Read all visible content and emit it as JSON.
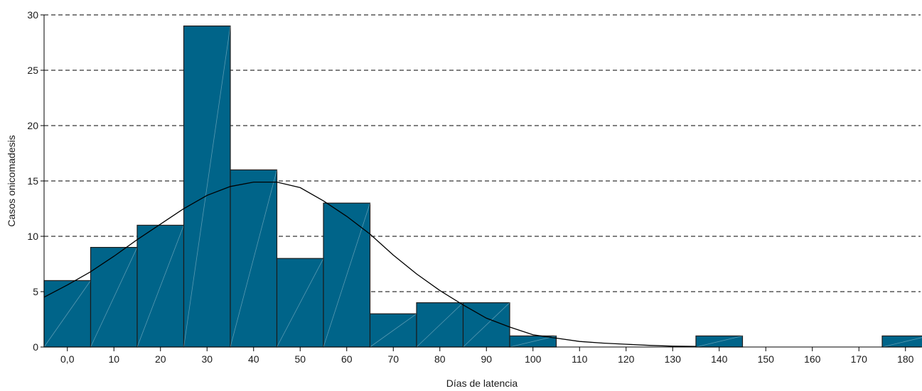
{
  "chart_data": {
    "type": "bar",
    "xlabel": "Días de latencia",
    "ylabel": "Casos onicomadesis",
    "ylim": [
      0,
      30
    ],
    "yticks": [
      0,
      5,
      10,
      15,
      20,
      25,
      30
    ],
    "grid": "horizontal-dashed",
    "x_tick_labels": [
      "0,0",
      "10",
      "20",
      "30",
      "40",
      "50",
      "60",
      "70",
      "80",
      "90",
      "100",
      "110",
      "120",
      "130",
      "140",
      "150",
      "160",
      "170",
      "180"
    ],
    "bin_width": 10,
    "bins": [
      {
        "center": 0,
        "value": 6
      },
      {
        "center": 10,
        "value": 9
      },
      {
        "center": 20,
        "value": 11
      },
      {
        "center": 30,
        "value": 29
      },
      {
        "center": 40,
        "value": 16
      },
      {
        "center": 50,
        "value": 8
      },
      {
        "center": 60,
        "value": 13
      },
      {
        "center": 70,
        "value": 3
      },
      {
        "center": 80,
        "value": 4
      },
      {
        "center": 90,
        "value": 4
      },
      {
        "center": 100,
        "value": 1
      },
      {
        "center": 140,
        "value": 1
      },
      {
        "center": 180,
        "value": 1
      }
    ],
    "fitted_curve": {
      "type": "normal",
      "x": [
        -5,
        0,
        5,
        10,
        15,
        20,
        25,
        30,
        35,
        40,
        45,
        50,
        55,
        60,
        65,
        70,
        75,
        80,
        85,
        90,
        95,
        100,
        105,
        110,
        115,
        120,
        125,
        130,
        135
      ],
      "y": [
        4.5,
        5.6,
        6.8,
        8.2,
        9.7,
        11.1,
        12.5,
        13.7,
        14.5,
        14.9,
        14.9,
        14.4,
        13.2,
        11.8,
        10.2,
        8.3,
        6.6,
        5.1,
        3.8,
        2.6,
        1.8,
        1.1,
        0.8,
        0.5,
        0.35,
        0.25,
        0.15,
        0.08,
        0.05
      ]
    },
    "colors": {
      "bar_fill": "#006489",
      "bar_stroke": "#1c1c1c",
      "curve": "#000000",
      "grid": "#000000"
    }
  }
}
